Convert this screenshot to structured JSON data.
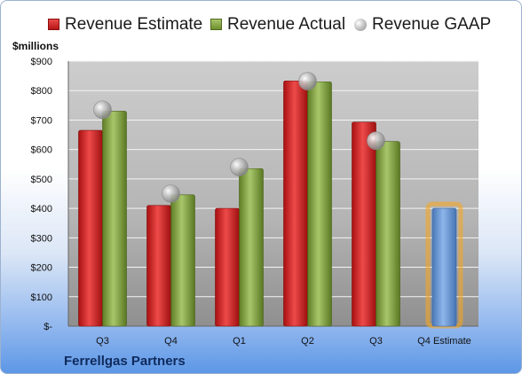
{
  "legend": {
    "estimate": "Revenue Estimate",
    "actual": "Revenue Actual",
    "gaap": "Revenue GAAP"
  },
  "unit_label": "$millions",
  "company": "Ferrellgas Partners",
  "colors": {
    "estimate": "#d42424",
    "actual": "#8aab45",
    "gaap": "#b5b5b5",
    "forecast": "#6a9ad8",
    "forecast_glow": "#f5a623"
  },
  "chart_data": {
    "type": "bar",
    "categories": [
      "Q3",
      "Q4",
      "Q1",
      "Q2",
      "Q3",
      "Q4 Estimate"
    ],
    "ylim": [
      0,
      900
    ],
    "y_ticks": [
      "$-",
      "$100",
      "$200",
      "$300",
      "$400",
      "$500",
      "$600",
      "$700",
      "$800",
      "$900"
    ],
    "series": [
      {
        "name": "Revenue Estimate",
        "values": [
          665,
          410,
          400,
          833,
          693,
          null
        ]
      },
      {
        "name": "Revenue Actual",
        "values": [
          730,
          446,
          535,
          830,
          627,
          null
        ]
      },
      {
        "name": "Revenue GAAP",
        "values": [
          735,
          450,
          540,
          832,
          630,
          null
        ]
      }
    ],
    "forecast": {
      "category": "Q4 Estimate",
      "value": 400
    },
    "grid": true,
    "legend_position": "top"
  }
}
